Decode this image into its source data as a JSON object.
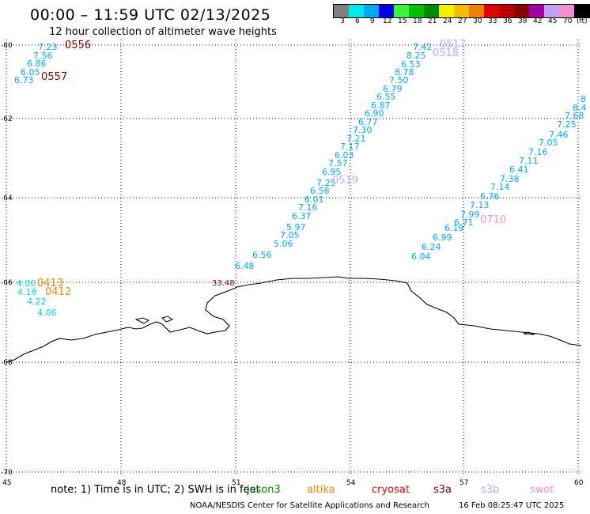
{
  "header": {
    "title": "00:00 – 11:59 UTC 02/13/2025",
    "subtitle": "12 hour collection of altimeter wave heights"
  },
  "legend": {
    "unit": "(ft)",
    "bins": [
      {
        "label": "3",
        "color": "#808080"
      },
      {
        "label": "6",
        "color": "#00e8e8"
      },
      {
        "label": "9",
        "color": "#00a8f0"
      },
      {
        "label": "12",
        "color": "#0000e0"
      },
      {
        "label": "15",
        "color": "#40f040"
      },
      {
        "label": "18",
        "color": "#00c000"
      },
      {
        "label": "21",
        "color": "#008800"
      },
      {
        "label": "24",
        "color": "#f0f000"
      },
      {
        "label": "27",
        "color": "#f0c000"
      },
      {
        "label": "30",
        "color": "#f08000"
      },
      {
        "label": "33",
        "color": "#e00000"
      },
      {
        "label": "36",
        "color": "#b80000"
      },
      {
        "label": "39",
        "color": "#880000"
      },
      {
        "label": "42",
        "color": "#a000a0"
      },
      {
        "label": "45",
        "color": "#c0a0f0"
      },
      {
        "label": "70",
        "color": "#f090d0"
      },
      {
        "label": "",
        "color": "#000000"
      }
    ]
  },
  "map": {
    "lon_ticks": [
      "45",
      "48",
      "51",
      "54",
      "57",
      "60"
    ],
    "lat_ticks": [
      "-60",
      "-62",
      "-64",
      "-66",
      "-68",
      "-70"
    ],
    "coast_color": "#000000",
    "pass_labels": [
      {
        "text": "0556",
        "color": "#800000"
      },
      {
        "text": "0557",
        "color": "#800000"
      },
      {
        "text": "0517",
        "color": "#c0a8f0"
      },
      {
        "text": "0518",
        "color": "#c0a8f0"
      },
      {
        "text": "0519",
        "color": "#c0a8f0"
      },
      {
        "text": "0710",
        "color": "#f090d0"
      },
      {
        "text": "0413",
        "color": "#f08000"
      },
      {
        "text": "0412",
        "color": "#f08000"
      }
    ],
    "tracks": [
      {
        "name": "nw",
        "color": "#00a8f0",
        "values": [
          "7.23",
          "7.56",
          "6.86",
          "6.05",
          "6.73"
        ]
      },
      {
        "name": "main",
        "color": "#00a8f0",
        "values": [
          "7.42",
          "8.25",
          "6.53",
          "8.78",
          "7.50",
          "6.79",
          "6.55",
          "6.87",
          "6.90",
          "6.77",
          "7.30",
          "7.21",
          "7.17",
          "6.03",
          "7.57",
          "6.95",
          "7.25",
          "6.58",
          "6.01",
          "7.16",
          "6.37",
          "5.97",
          "7.05",
          "5.06",
          "6.56",
          "6.48"
        ]
      },
      {
        "name": "east",
        "color": "#00a8f0",
        "values": [
          "8",
          "8.4",
          "7.68",
          "7.25",
          "7.46",
          "7.05",
          "7.16",
          "7.11",
          "6.41",
          "7.38",
          "7.14",
          "6.76",
          "7.13",
          "7.99",
          "6.71",
          "6.19",
          "6.99",
          "6.24",
          "6.04"
        ]
      },
      {
        "name": "west",
        "color": "#00d8e0",
        "values": [
          "4.00",
          "4.18",
          "4.22",
          "4.06"
        ]
      }
    ],
    "extra_value": {
      "text": "33.48",
      "color": "#800000"
    }
  },
  "note": "note:  1) Time is in UTC; 2) SWH is in feet",
  "satellites": [
    {
      "name": "jason3",
      "color": "#008800"
    },
    {
      "name": "altika",
      "color": "#f08000"
    },
    {
      "name": "cryosat",
      "color": "#e00000"
    },
    {
      "name": "s3a",
      "color": "#800000"
    },
    {
      "name": "s3b",
      "color": "#c0a8f0"
    },
    {
      "name": "swot",
      "color": "#f090d0"
    }
  ],
  "footer": {
    "credit": "NOAA/NESDIS Center for Satellite Applications and Research",
    "timestamp": "16 Feb 08:25:47 UTC 2025"
  }
}
